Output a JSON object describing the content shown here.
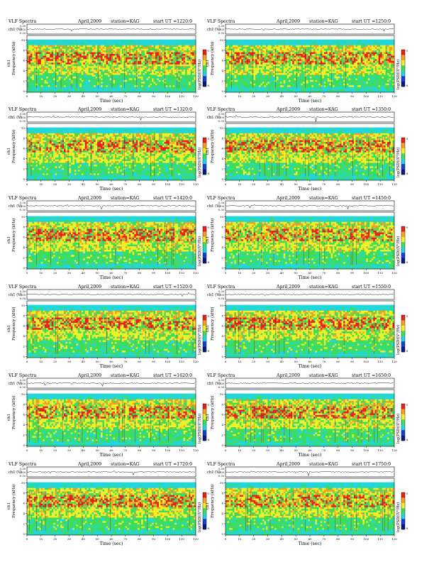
{
  "chart_data": [
    {
      "type": "heatmap",
      "header": {
        "title": "VLF Spectra",
        "date": "April,2009",
        "station": "station=KAG",
        "start": "start  UT =1220:0"
      }
    },
    {
      "type": "heatmap",
      "header": {
        "title": "VLF Spectra",
        "date": "April,2009",
        "station": "station=KAG",
        "start": "start  UT =1250:0"
      }
    },
    {
      "type": "heatmap",
      "header": {
        "title": "VLF Spectra",
        "date": "April,2009",
        "station": "station=KAG",
        "start": "start  UT =1320:0"
      }
    },
    {
      "type": "heatmap",
      "header": {
        "title": "VLF Spectra",
        "date": "April,2009",
        "station": "station=KAG",
        "start": "start  UT =1350:0"
      }
    },
    {
      "type": "heatmap",
      "header": {
        "title": "VLF Spectra",
        "date": "April,2009",
        "station": "station=KAG",
        "start": "start  UT =1420:0"
      }
    },
    {
      "type": "heatmap",
      "header": {
        "title": "VLF Spectra",
        "date": "April,2009",
        "station": "station=KAG",
        "start": "start  UT =1450:0"
      }
    },
    {
      "type": "heatmap",
      "header": {
        "title": "VLF Spectra",
        "date": "April,2009",
        "station": "station=KAG",
        "start": "start  UT =1520:0"
      }
    },
    {
      "type": "heatmap",
      "header": {
        "title": "VLF Spectra",
        "date": "April,2009",
        "station": "station=KAG",
        "start": "start  UT =1550:0"
      }
    },
    {
      "type": "heatmap",
      "header": {
        "title": "VLF Spectra",
        "date": "April,2009",
        "station": "station=KAG",
        "start": "start  UT =1620:0"
      }
    },
    {
      "type": "heatmap",
      "header": {
        "title": "VLF Spectra",
        "date": "April,2009",
        "station": "station=KAG",
        "start": "start  UT =1650:0"
      }
    },
    {
      "type": "heatmap",
      "header": {
        "title": "VLF Spectra",
        "date": "April,2009",
        "station": "station=KAG",
        "start": "start  UT =1720:0"
      }
    },
    {
      "type": "heatmap",
      "header": {
        "title": "VLF Spectra",
        "date": "April,2009",
        "station": "station=KAG",
        "start": "start  UT =1750:0"
      }
    }
  ],
  "shared_axes": {
    "waveform_ylabel": "ch1 (V)",
    "waveform_ticks": [
      "0.30",
      "0.00",
      "-0.30"
    ],
    "spectrogram_ylabel_line1": "ch1",
    "spectrogram_ylabel_line2": "Frequency  (kHz)",
    "y_ticks": [
      "10",
      "8",
      "6",
      "4",
      "2",
      "0"
    ],
    "ylim": [
      0,
      10
    ],
    "xlabel": "Time  (sec)",
    "x_ticks": [
      "0",
      "10",
      "20",
      "30",
      "40",
      "50",
      "60",
      "70",
      "80",
      "90",
      "100",
      "110",
      "120"
    ],
    "xlim": [
      0,
      120
    ],
    "colorbar_label": "log(PSD)(V²/Hz)",
    "colorbar_ticks": [
      "-5",
      "-8"
    ]
  },
  "colors": {
    "cyan": "#22d6e0",
    "green": "#3fdc5a",
    "yellow": "#f2f227",
    "orange": "#f5a020",
    "red": "#e8201c",
    "darkred": "#8a0c10",
    "white": "#ffffff",
    "blue": "#1540d0",
    "darkblue": "#081a80"
  }
}
